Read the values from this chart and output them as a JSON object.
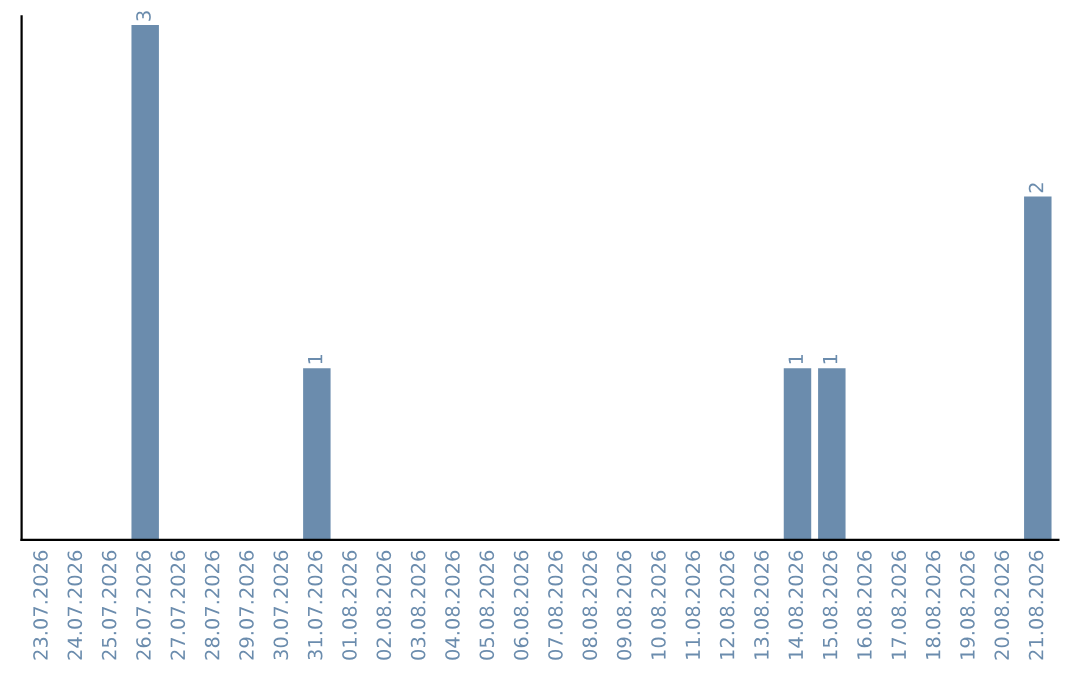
{
  "chart_data": {
    "type": "bar",
    "categories": [
      "23.07.2026",
      "24.07.2026",
      "25.07.2026",
      "26.07.2026",
      "27.07.2026",
      "28.07.2026",
      "29.07.2026",
      "30.07.2026",
      "31.07.2026",
      "01.08.2026",
      "02.08.2026",
      "03.08.2026",
      "04.08.2026",
      "05.08.2026",
      "06.08.2026",
      "07.08.2026",
      "08.08.2026",
      "09.08.2026",
      "10.08.2026",
      "11.08.2026",
      "12.08.2026",
      "13.08.2026",
      "14.08.2026",
      "15.08.2026",
      "16.08.2026",
      "17.08.2026",
      "18.08.2026",
      "19.08.2026",
      "20.08.2026",
      "21.08.2026"
    ],
    "series": [
      {
        "color": "#6b8cad",
        "values": [
          0,
          0,
          0,
          3,
          0,
          0,
          0,
          0,
          1,
          0,
          0,
          0,
          0,
          0,
          0,
          0,
          0,
          0,
          0,
          0,
          0,
          0,
          1,
          1,
          0,
          0,
          0,
          0,
          0,
          2
        ],
        "value_labels": [
          null,
          null,
          null,
          "3",
          null,
          null,
          null,
          null,
          "1",
          null,
          null,
          null,
          null,
          null,
          null,
          null,
          null,
          null,
          null,
          null,
          null,
          null,
          "1",
          "1",
          null,
          null,
          null,
          null,
          null,
          "2"
        ]
      }
    ],
    "ylim": [
      0,
      3.05
    ],
    "tick_labels": "x"
  }
}
